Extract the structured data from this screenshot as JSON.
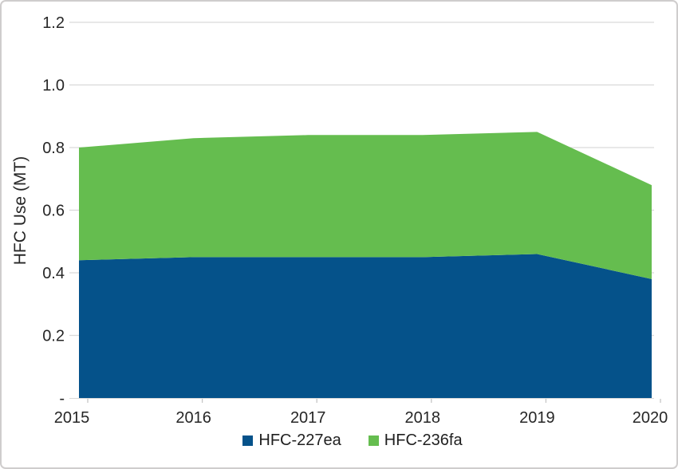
{
  "frame": {
    "background": "#ffffff",
    "border_color": "#cfcdcd"
  },
  "chart_data": {
    "type": "area",
    "stacked": true,
    "title": "",
    "xlabel": "",
    "ylabel": "HFC Use (MT)",
    "categories": [
      "2015",
      "2016",
      "2017",
      "2018",
      "2019",
      "2020"
    ],
    "series": [
      {
        "name": "HFC-227ea",
        "color": "#05528a",
        "values": [
          0.44,
          0.45,
          0.45,
          0.45,
          0.46,
          0.38
        ]
      },
      {
        "name": "HFC-236fa",
        "color": "#65bd4f",
        "values": [
          0.36,
          0.38,
          0.39,
          0.39,
          0.39,
          0.3
        ]
      }
    ],
    "stacked_totals": [
      0.8,
      0.83,
      0.84,
      0.84,
      0.85,
      0.68
    ],
    "ylim": [
      0,
      1.2
    ],
    "yticks": [
      {
        "value": 1.2,
        "label": "1.2"
      },
      {
        "value": 1.0,
        "label": "1.0"
      },
      {
        "value": 0.8,
        "label": "0.8"
      },
      {
        "value": 0.6,
        "label": "0.6"
      },
      {
        "value": 0.4,
        "label": "0.4"
      },
      {
        "value": 0.2,
        "label": "0.2"
      },
      {
        "value": 0.0,
        "label": "-"
      }
    ],
    "grid": true,
    "gridline_color": "#d9d9d9",
    "axis_line_color": "#d9d9d9",
    "tick_mark_color": "#c6c6c6",
    "axis_text_color": "#262626",
    "legend_position": "bottom"
  }
}
